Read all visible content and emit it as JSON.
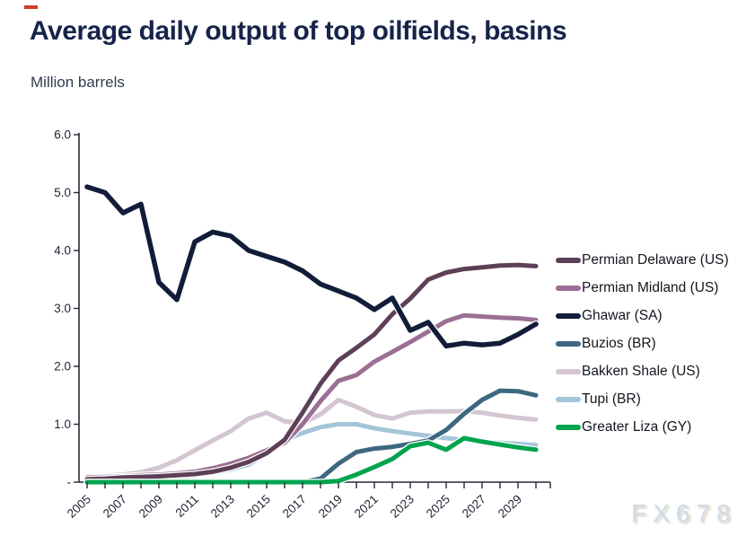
{
  "page": {
    "title": "Average daily output of top oilfields, basins",
    "subtitle": "Million barrels",
    "watermark": "FX678"
  },
  "chart_data": {
    "type": "line",
    "title": "Average daily output of top oilfields, basins",
    "ylabel": "Million barrels",
    "ylim": [
      0,
      6
    ],
    "grid": false,
    "legend_position": "right",
    "x": [
      2005,
      2006,
      2007,
      2008,
      2009,
      2010,
      2011,
      2012,
      2013,
      2014,
      2015,
      2016,
      2017,
      2018,
      2019,
      2020,
      2021,
      2022,
      2023,
      2024,
      2025,
      2026,
      2027,
      2028,
      2029,
      2030
    ],
    "x_tick_labels": [
      "2005",
      "2007",
      "2009",
      "2011",
      "2013",
      "2015",
      "2017",
      "2019",
      "2021",
      "2023",
      "2025",
      "2027",
      "2029"
    ],
    "y_ticks": {
      "values": [
        6,
        5,
        4,
        3,
        2,
        1,
        0
      ],
      "labels": [
        "6.0",
        "5.0",
        "4.0",
        "3.0",
        "2.0",
        "1.0",
        "-"
      ]
    },
    "series": [
      {
        "name": "Permian Delaware (US)",
        "color": "#5d4057",
        "values": [
          0.05,
          0.06,
          0.08,
          0.09,
          0.1,
          0.12,
          0.14,
          0.18,
          0.25,
          0.35,
          0.5,
          0.73,
          1.2,
          1.7,
          2.1,
          2.32,
          2.55,
          2.9,
          3.17,
          3.5,
          3.62,
          3.68,
          3.71,
          3.74,
          3.75,
          3.73
        ]
      },
      {
        "name": "Permian Midland (US)",
        "color": "#9b6f94",
        "values": [
          0.08,
          0.09,
          0.1,
          0.12,
          0.13,
          0.15,
          0.18,
          0.24,
          0.32,
          0.42,
          0.55,
          0.68,
          1.0,
          1.4,
          1.75,
          1.85,
          2.08,
          2.25,
          2.42,
          2.6,
          2.78,
          2.88,
          2.86,
          2.84,
          2.83,
          2.8
        ]
      },
      {
        "name": "Ghawar (SA)",
        "color": "#111d38",
        "values": [
          5.1,
          5.0,
          4.65,
          4.8,
          3.45,
          3.15,
          4.15,
          4.32,
          4.25,
          4.0,
          3.9,
          3.8,
          3.65,
          3.42,
          3.3,
          3.18,
          2.98,
          3.18,
          2.62,
          2.76,
          2.35,
          2.4,
          2.37,
          2.4,
          2.55,
          2.73
        ]
      },
      {
        "name": "Buzios (BR)",
        "color": "#3d687f",
        "values": [
          0,
          0,
          0,
          0,
          0,
          0,
          0,
          0,
          0,
          0,
          0,
          0,
          0,
          0.06,
          0.32,
          0.52,
          0.58,
          0.61,
          0.66,
          0.72,
          0.9,
          1.18,
          1.42,
          1.58,
          1.57,
          1.5
        ]
      },
      {
        "name": "Bakken Shale (US)",
        "color": "#d3c5d2",
        "values": [
          0.1,
          0.11,
          0.13,
          0.17,
          0.25,
          0.38,
          0.55,
          0.72,
          0.88,
          1.1,
          1.2,
          1.05,
          1.02,
          1.17,
          1.42,
          1.3,
          1.16,
          1.1,
          1.2,
          1.22,
          1.22,
          1.23,
          1.2,
          1.15,
          1.11,
          1.08
        ]
      },
      {
        "name": "Tupi (BR)",
        "color": "#a4c5d9",
        "values": [
          0.02,
          0.02,
          0.02,
          0.03,
          0.05,
          0.08,
          0.12,
          0.16,
          0.22,
          0.3,
          0.5,
          0.72,
          0.85,
          0.95,
          1.0,
          1.0,
          0.93,
          0.88,
          0.84,
          0.8,
          0.76,
          0.73,
          0.7,
          0.68,
          0.66,
          0.64
        ]
      },
      {
        "name": "Greater Liza (GY)",
        "color": "#00a44e",
        "values": [
          0,
          0,
          0,
          0,
          0,
          0,
          0,
          0,
          0,
          0,
          0,
          0,
          0,
          0,
          0.02,
          0.13,
          0.26,
          0.4,
          0.62,
          0.68,
          0.56,
          0.76,
          0.7,
          0.65,
          0.6,
          0.56
        ]
      }
    ],
    "draw_order": [
      4,
      5,
      1,
      0,
      3,
      6,
      2
    ]
  }
}
